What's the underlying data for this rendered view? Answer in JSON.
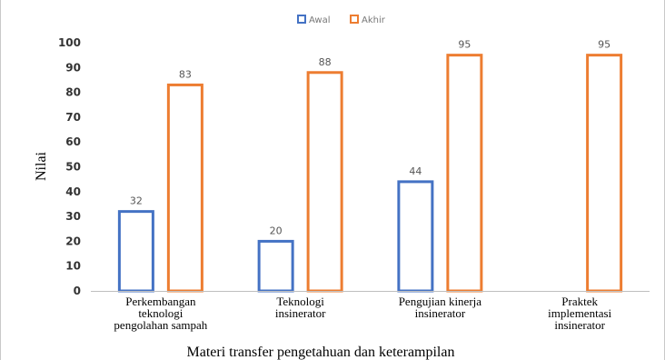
{
  "chart_data": {
    "type": "bar",
    "categories": [
      [
        "Perkembangan",
        "teknologi",
        "pengolahan sampah"
      ],
      [
        "Teknologi",
        "insinerator"
      ],
      [
        "Pengujian kinerja",
        "insinerator"
      ],
      [
        "Praktek",
        "implementasi",
        "insinerator"
      ]
    ],
    "series": [
      {
        "name": "Awal",
        "values": [
          32,
          20,
          44,
          null
        ],
        "labels": [
          "32",
          "20",
          "44",
          ""
        ],
        "color": "#4472c4"
      },
      {
        "name": "Akhir",
        "values": [
          83,
          88,
          95,
          95
        ],
        "labels": [
          "83",
          "88",
          "95",
          "95"
        ],
        "color": "#ed7d31"
      }
    ],
    "title": "",
    "xlabel": "Materi transfer pengetahuan dan keterampilan",
    "ylabel": "Nilai",
    "ylim": [
      0,
      100
    ],
    "yticks": [
      "0",
      "10",
      "20",
      "30",
      "40",
      "50",
      "60",
      "70",
      "80",
      "90",
      "100"
    ],
    "grid": false,
    "legend": "top-center",
    "bar_style": "outline"
  }
}
